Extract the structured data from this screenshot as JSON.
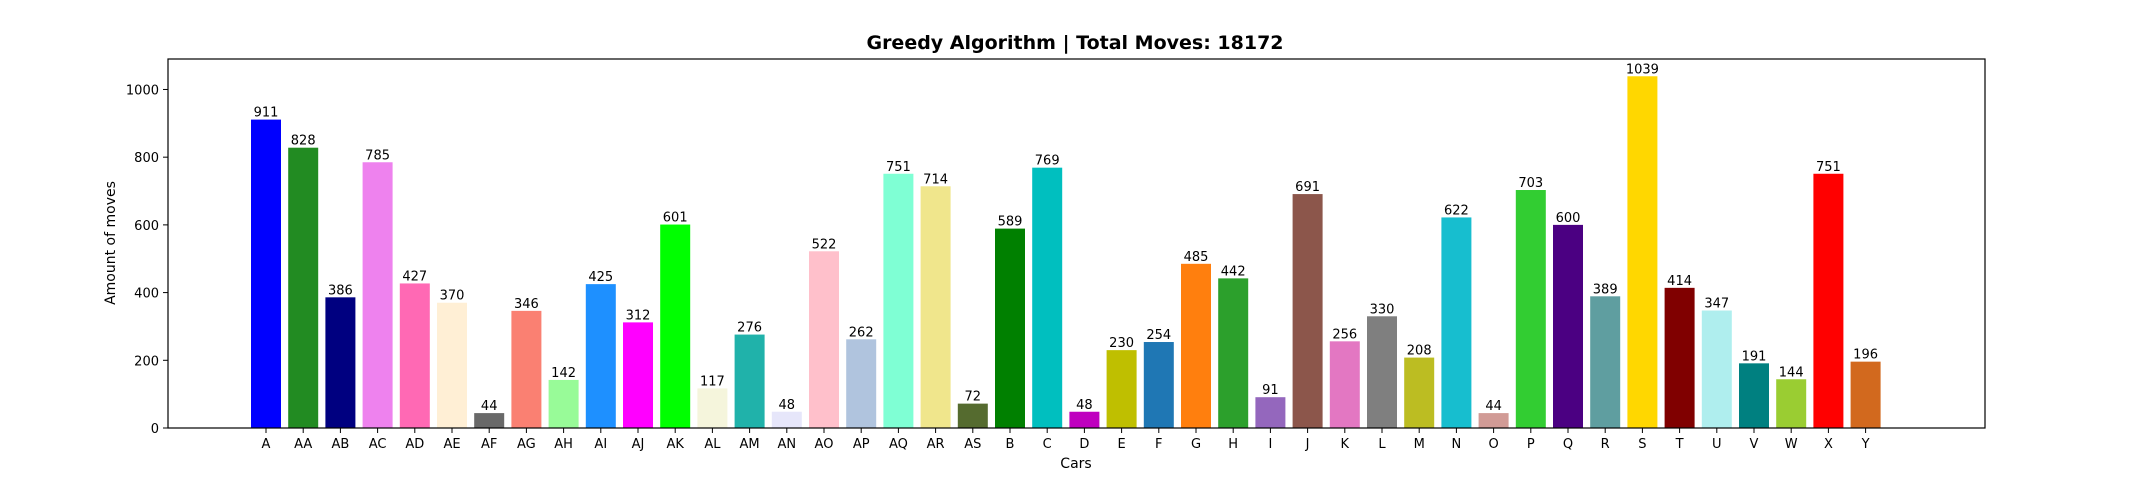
{
  "chart_data": {
    "type": "bar",
    "title": "Greedy Algorithm | Total Moves: 18172",
    "xlabel": "Cars",
    "ylabel": "Amount of moves",
    "ylim": [
      0,
      1090
    ],
    "yticks": [
      0,
      200,
      400,
      600,
      800,
      1000
    ],
    "grid": false,
    "categories": [
      "A",
      "AA",
      "AB",
      "AC",
      "AD",
      "AE",
      "AF",
      "AG",
      "AH",
      "AI",
      "AJ",
      "AK",
      "AL",
      "AM",
      "AN",
      "AO",
      "AP",
      "AQ",
      "AR",
      "AS",
      "B",
      "C",
      "D",
      "E",
      "F",
      "G",
      "H",
      "I",
      "J",
      "K",
      "L",
      "M",
      "N",
      "O",
      "P",
      "Q",
      "R",
      "S",
      "T",
      "U",
      "V",
      "W",
      "X",
      "Y"
    ],
    "values": [
      911,
      828,
      386,
      785,
      427,
      370,
      44,
      346,
      142,
      425,
      312,
      601,
      117,
      276,
      48,
      522,
      262,
      751,
      714,
      72,
      589,
      769,
      48,
      230,
      254,
      485,
      442,
      91,
      691,
      256,
      330,
      208,
      622,
      44,
      703,
      600,
      389,
      1039,
      414,
      347,
      191,
      144,
      751,
      196
    ],
    "colors": [
      "#0000ff",
      "#228b22",
      "#000080",
      "#ee82ee",
      "#ff69b4",
      "#ffefd5",
      "#696969",
      "#fa8072",
      "#98fb98",
      "#1e90ff",
      "#ff00ff",
      "#00ff00",
      "#f5f5dc",
      "#20b2aa",
      "#e6e6fa",
      "#ffc0cb",
      "#b0c4de",
      "#7fffd4",
      "#f0e68c",
      "#556b2f",
      "#008000",
      "#00bfbf",
      "#bf00bf",
      "#bfbf00",
      "#1f77b4",
      "#ff7f0e",
      "#2ca02c",
      "#9467bd",
      "#8c564b",
      "#e377c2",
      "#7f7f7f",
      "#bcbd22",
      "#17becf",
      "#d19b96",
      "#32cd32",
      "#4b0082",
      "#5f9ea0",
      "#ffd700",
      "#800000",
      "#afeeee",
      "#008080",
      "#9acd32",
      "#ff0000",
      "#d2691e"
    ]
  }
}
